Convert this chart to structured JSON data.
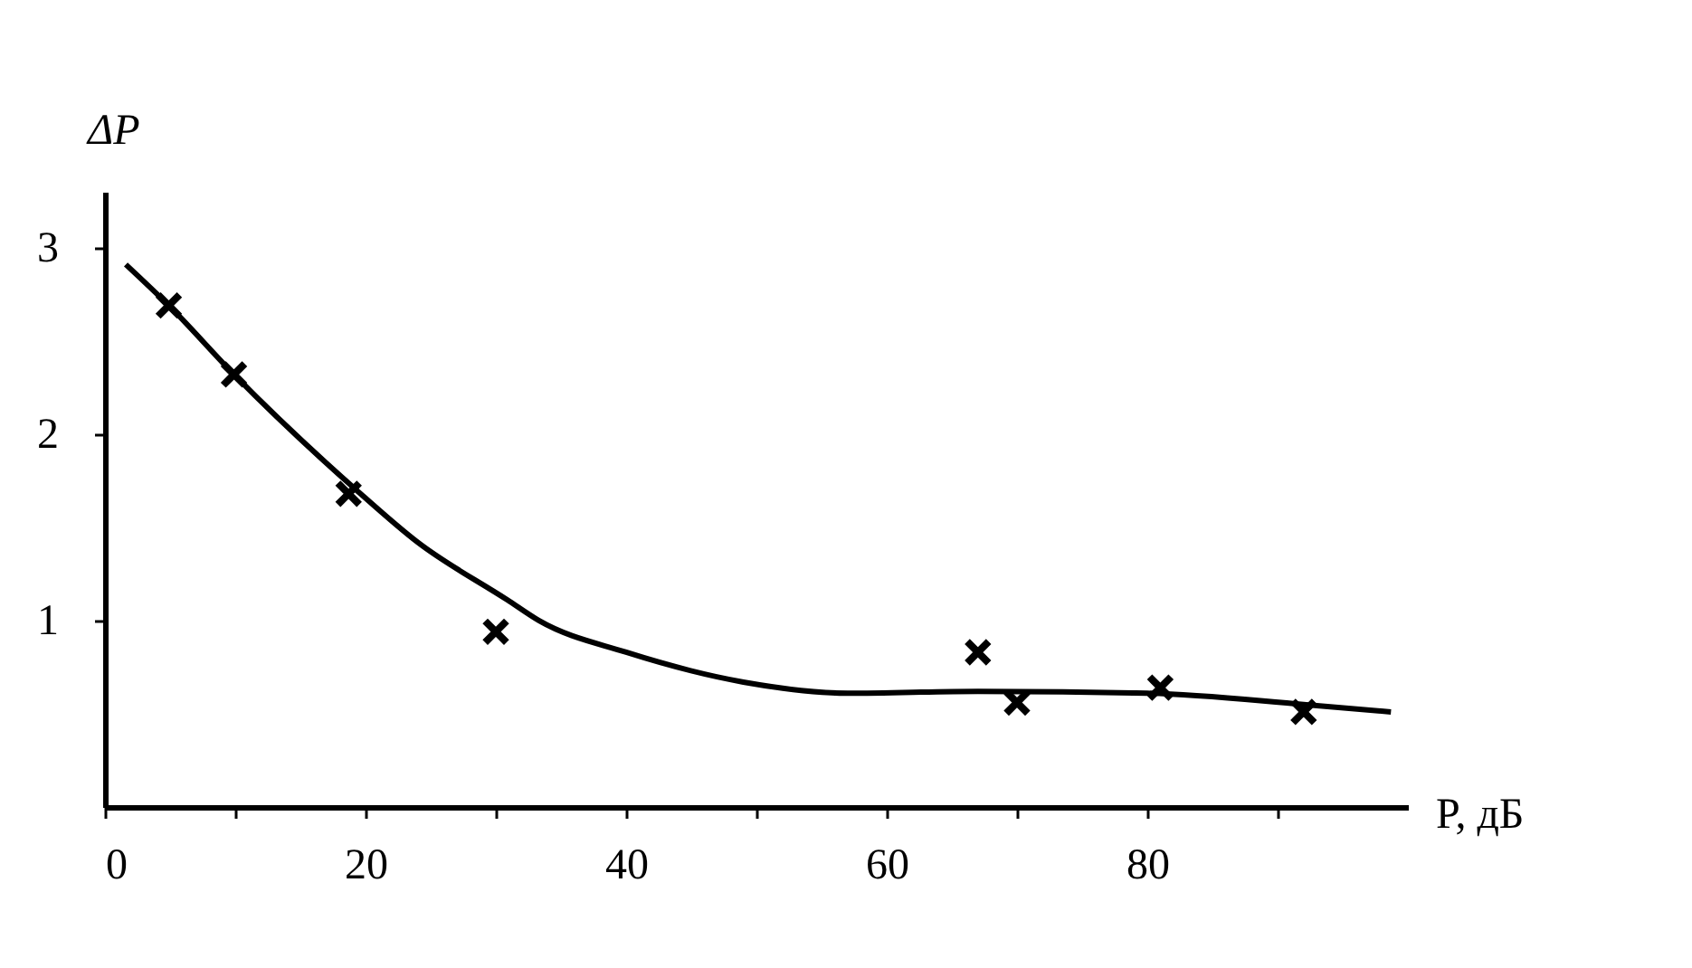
{
  "chart_data": {
    "type": "scatter",
    "xlabel": "P, дБ",
    "ylabel": "ΔP",
    "xlim": [
      0,
      100
    ],
    "ylim": [
      0,
      3.3
    ],
    "xticks": [
      0,
      {
        "value": 10,
        "label": null
      },
      20,
      {
        "value": 30,
        "label": null
      },
      40,
      {
        "value": 50,
        "label": null
      },
      60,
      {
        "value": 70,
        "label": null
      },
      80,
      {
        "value": 90,
        "label": null
      }
    ],
    "yticks": [
      1,
      2,
      3
    ],
    "grid": false,
    "marker": "cross",
    "series": [
      {
        "color": "#000000",
        "x": [
          4.9,
          9.9,
          18.7,
          30,
          67,
          70,
          81,
          92
        ],
        "values": [
          2.69,
          2.32,
          1.68,
          0.94,
          0.83,
          0.56,
          0.64,
          0.51
        ]
      },
      {
        "type": "line",
        "color": "#000000",
        "marker": "none",
        "line_style": "solid",
        "x": [
          1.6,
          4.9,
          9.9,
          19.3,
          24,
          30.9,
          33.3,
          40,
          49,
          57,
          67,
          80,
          92,
          98.7
        ],
        "values": [
          2.91,
          2.69,
          2.32,
          1.7,
          1.42,
          1.11,
          1.0,
          0.83,
          0.67,
          0.61,
          0.62,
          0.61,
          0.55,
          0.51
        ]
      }
    ]
  }
}
